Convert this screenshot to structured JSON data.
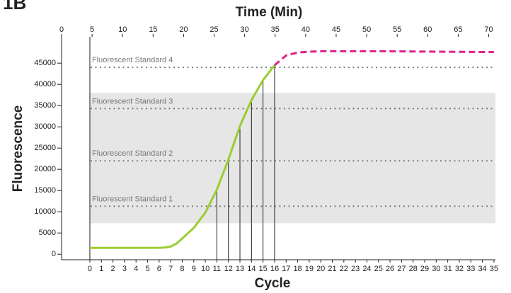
{
  "chart_data": {
    "type": "line",
    "panel_label": "1B",
    "x2_label": "Time (Min)",
    "x_label": "Cycle",
    "y_label": "Fluorescence",
    "x": [
      0,
      6,
      6.5,
      7,
      7.5,
      8,
      9,
      10,
      11,
      12,
      13,
      14,
      15,
      16,
      17,
      18,
      19,
      20,
      25,
      30,
      35
    ],
    "series": [
      {
        "color": "#9acd32",
        "dash": false,
        "values": [
          1500,
          1520,
          1580,
          1800,
          2500,
          3700,
          6200,
          9800,
          15200,
          22300,
          30200,
          36300,
          41000,
          44500,
          null,
          null,
          null,
          null,
          null,
          null,
          null
        ]
      },
      {
        "color": "#e0218a",
        "dash": true,
        "values": [
          null,
          null,
          null,
          null,
          null,
          null,
          null,
          null,
          null,
          null,
          null,
          null,
          null,
          44500,
          46800,
          47500,
          47700,
          47800,
          47800,
          47700,
          47600
        ]
      }
    ],
    "xlim": [
      -2.45,
      35.13
    ],
    "xticks": [
      0,
      1,
      2,
      3,
      4,
      5,
      6,
      7,
      8,
      9,
      10,
      11,
      12,
      13,
      14,
      15,
      16,
      17,
      18,
      19,
      20,
      21,
      22,
      23,
      24,
      25,
      26,
      27,
      28,
      29,
      30,
      31,
      32,
      33,
      34,
      35
    ],
    "x2lim": [
      0,
      71.1
    ],
    "x2ticks": [
      0,
      5,
      10,
      15,
      20,
      25,
      30,
      35,
      40,
      45,
      50,
      55,
      60,
      65,
      70
    ],
    "ylim": [
      -1300,
      51200
    ],
    "yticks": [
      0,
      5000,
      10000,
      15000,
      20000,
      25000,
      30000,
      35000,
      40000,
      45000
    ],
    "band": [
      7300,
      38000
    ],
    "standards": [
      {
        "label": "Fluorescent Standard 1",
        "value": 11300
      },
      {
        "label": "Fluorescent Standard 2",
        "value": 22000
      },
      {
        "label": "Fluorescent Standard 3",
        "value": 34300
      },
      {
        "label": "Fluorescent Standard 4",
        "value": 44000
      }
    ],
    "ref_line": 0,
    "drop_lines": [
      11,
      12,
      13,
      14,
      15,
      16
    ]
  }
}
